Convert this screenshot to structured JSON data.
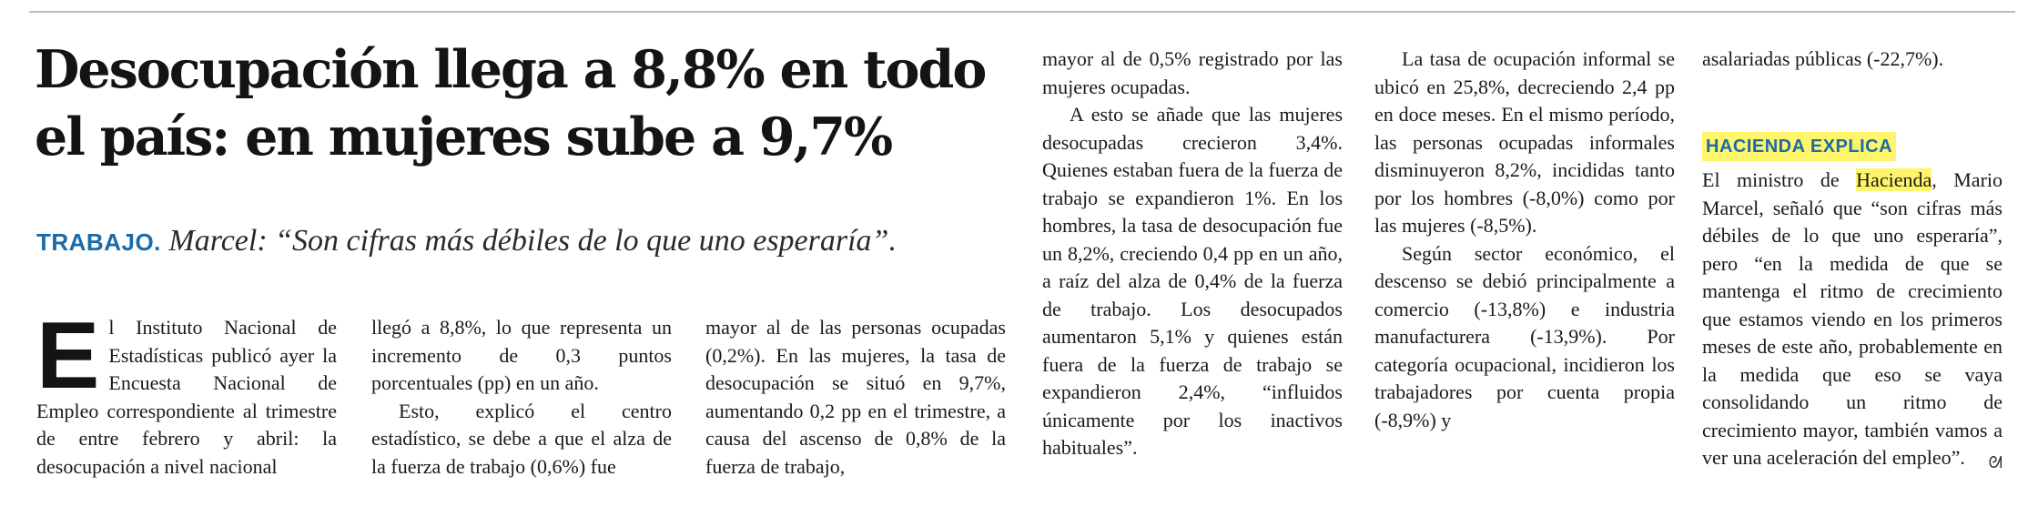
{
  "headline": "Desocupación llega a 8,8% en todo el país: en mujeres sube a 9,7%",
  "deck": {
    "kicker": "TRABAJO.",
    "text": "Marcel: “Son cifras más débiles de lo que uno esperaría”."
  },
  "article": {
    "dropcap": "E",
    "col1": "l Instituto Nacional de Estadísticas publicó ayer la Encuesta Nacional de Empleo correspondiente al trimestre de entre febrero y abril: la desocupación a nivel nacional",
    "col2_p1": "llegó a 8,8%, lo que representa un incremento de 0,3 puntos porcentuales (pp) en un año.",
    "col2_p2": "Esto, explicó el centro estadístico, se debe a que el alza de la fuerza de trabajo (0,6%) fue",
    "col3": "mayor al de las personas ocupadas (0,2%). En las mujeres, la tasa de desocupación se situó en 9,7%, aumentando 0,2 pp en el trimestre, a causa del ascenso de 0,8% de la fuerza de trabajo,",
    "col4_p1": "mayor al de 0,5% registrado por las mujeres ocupadas.",
    "col4_p2": "A esto se añade que las mujeres desocupadas crecieron 3,4%. Quienes estaban fuera de la fuerza de trabajo se expandieron 1%. En los hombres, la tasa de desocupación fue un 8,2%, creciendo 0,4 pp en un año, a raíz del alza de 0,4% de la fuerza de trabajo. Los desocupados aumentaron 5,1% y quienes están fuera de la fuerza de trabajo se expandieron 2,4%, “influidos únicamente por los inactivos habituales”.",
    "col5_p1": "La tasa de ocupación informal se ubicó en 25,8%, decreciendo 2,4 pp en doce meses. En el mismo período, las personas ocupadas informales disminuyeron 8,2%, incididas tanto por los hombres (-8,0%) como por las mujeres (-8,5%).",
    "col5_p2": "Según sector económico, el descenso se debió principalmente a comercio (-13,8%) e industria manufacturera (-13,9%). Por categoría ocupacional, incidieron los trabajadores por cuenta propia (-8,9%) y",
    "col6_p1": "asalariadas públicas (-22,7%).",
    "subhead": "HACIENDA EXPLICA",
    "col6_p2_before": "El ministro de ",
    "col6_p2_highlight": "Hacienda",
    "col6_p2_after": ", Mario Marcel, señaló que “son cifras más débiles de lo que uno esperaría”, pero “en la medida de que se mantenga el ritmo de crecimiento que estamos viendo en los primeros meses de este año, probablemente en la medida que eso se vaya consolidando un ritmo de crecimiento mayor, también vamos a ver una aceleración del empleo”.",
    "end_mark": "ᘛ"
  },
  "colors": {
    "accent": "#1c6aa8",
    "highlight": "#fff56a"
  }
}
